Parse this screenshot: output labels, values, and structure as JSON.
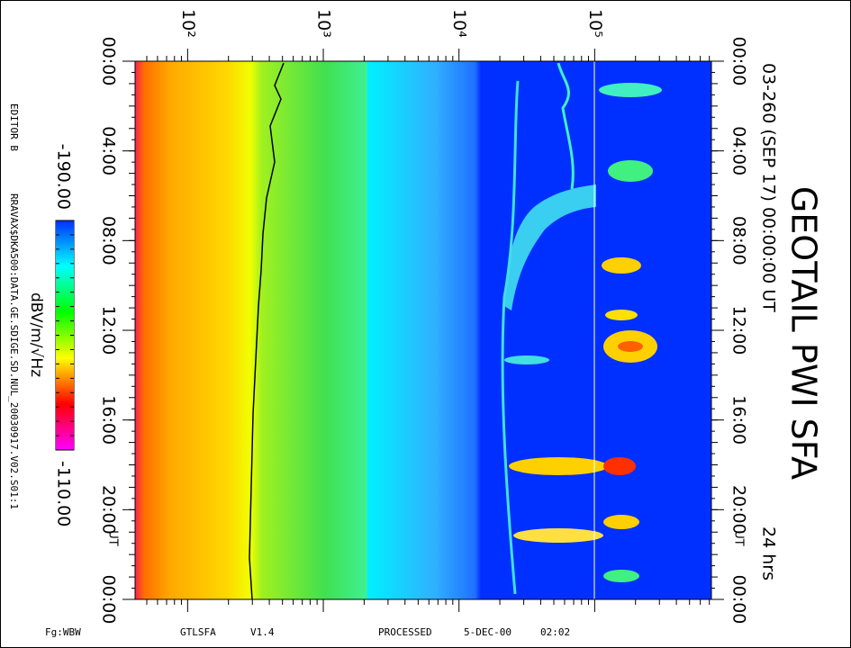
{
  "chart_data": {
    "type": "spectrogram",
    "title": "GEOTAIL PWI SFA",
    "subtitle": "03-260 (SEP 17) 00:00:00 UT",
    "duration": "24 hrs",
    "x_unit": "UT",
    "xlim": [
      0,
      24
    ],
    "xticks": [
      {
        "value": 0,
        "label": "00:00"
      },
      {
        "value": 4,
        "label": "04:00"
      },
      {
        "value": 8,
        "label": "08:00"
      },
      {
        "value": 12,
        "label": "12:00"
      },
      {
        "value": 16,
        "label": "16:00"
      },
      {
        "value": 20,
        "label": "20:00"
      },
      {
        "value": 24,
        "label": "00:00"
      }
    ],
    "ylim": [
      41,
      725000
    ],
    "log_y": true,
    "yticks": [
      {
        "value": 100,
        "label": "10²"
      },
      {
        "value": 1000,
        "label": "10³"
      },
      {
        "value": 10000,
        "label": "10⁴"
      },
      {
        "value": 100000,
        "label": "10⁵"
      }
    ],
    "colorbar": {
      "label": "dBV/m/√Hz",
      "clim": [
        -190,
        -110
      ],
      "ticks": [
        {
          "value": -190,
          "label": "-190.00"
        },
        {
          "value": -110,
          "label": "-110.00"
        }
      ],
      "colormap": [
        "#0030ff",
        "#00ffff",
        "#00ff00",
        "#ffff00",
        "#ff0000",
        "#ff00ff"
      ]
    },
    "editor": "EDITOR B",
    "source": "RRAVAX$DKA500:DATA.GE.SDIGE.SD.NUL_20030917.V02.S01:1",
    "footer": [
      "Fg:WBW",
      "GTLSFA",
      "V1.4",
      "PROCESSED",
      "5-DEC-00",
      "02:02"
    ]
  }
}
